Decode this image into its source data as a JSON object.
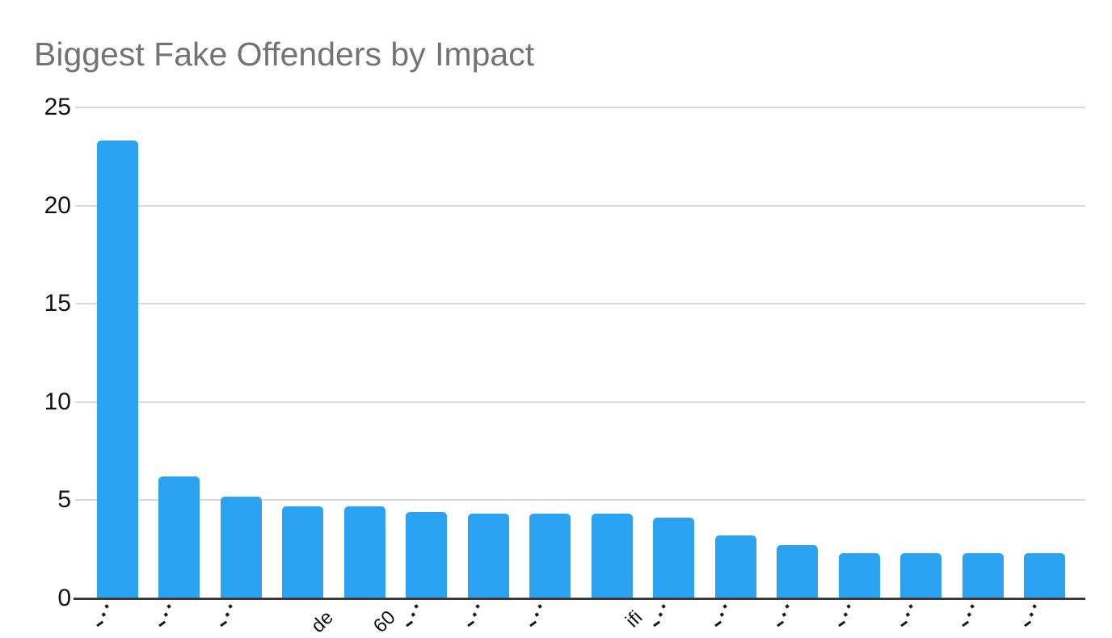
{
  "title": "Biggest Fake Offenders by Impact",
  "title_color": "#737373",
  "chart_data": {
    "type": "bar",
    "title": "Biggest Fake Offenders by Impact",
    "xlabel": "",
    "ylabel": "",
    "ylim": [
      0,
      25
    ],
    "y_ticks": [
      "0",
      "5",
      "10",
      "15",
      "20",
      "25"
    ],
    "grid": true,
    "legend": "none",
    "bar_color": "#2BA3F2",
    "gridline_color": "#d9d9d9",
    "axis_line_color": "#383838",
    "x_labels_clipped": true,
    "x_label_fragments": [
      "",
      "",
      "",
      "de",
      "60",
      "",
      "",
      "",
      "ifi",
      "",
      "",
      "",
      "",
      "",
      "",
      ""
    ],
    "values": [
      23.3,
      6.2,
      5.2,
      4.7,
      4.7,
      4.4,
      4.3,
      4.3,
      4.3,
      4.1,
      3.2,
      2.7,
      2.3,
      2.3,
      2.3,
      2.3
    ]
  }
}
